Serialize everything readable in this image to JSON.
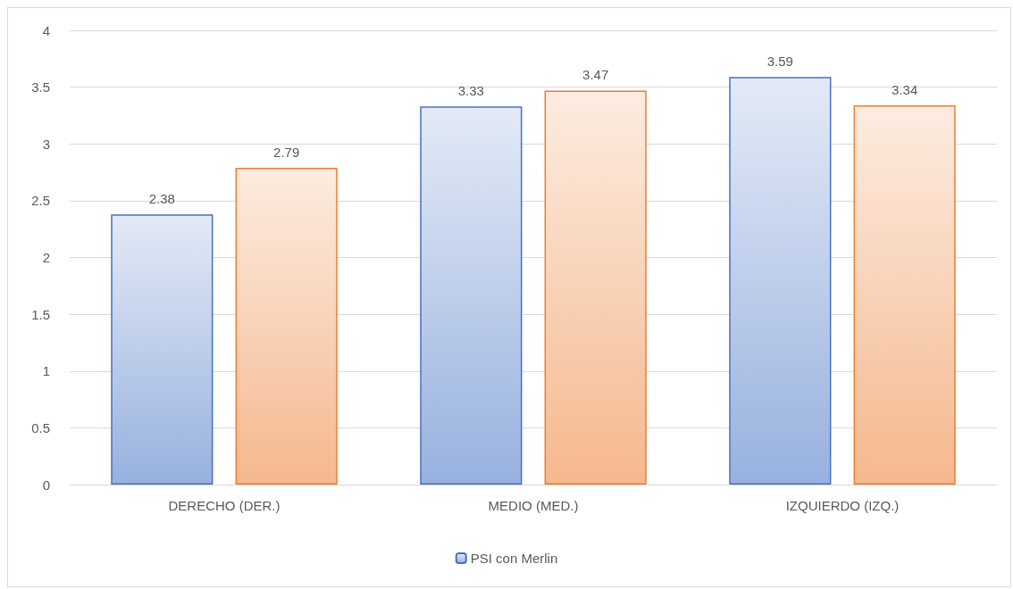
{
  "chart_data": {
    "type": "bar",
    "categories": [
      "DERECHO (DER.)",
      "MEDIO (MED.)",
      "IZQUIERDO (IZQ.)"
    ],
    "series": [
      {
        "name": "PSI con Merlin",
        "color": "#4472c4",
        "values": [
          2.38,
          3.33,
          3.59
        ]
      },
      {
        "color": "#ed7d31",
        "values": [
          2.79,
          3.47,
          3.34
        ]
      }
    ],
    "ylim": [
      0,
      4
    ],
    "yticks": [
      0,
      0.5,
      1,
      1.5,
      2,
      2.5,
      3,
      3.5,
      4
    ],
    "grid": "y",
    "legend": "bottom",
    "data_labels": true
  }
}
